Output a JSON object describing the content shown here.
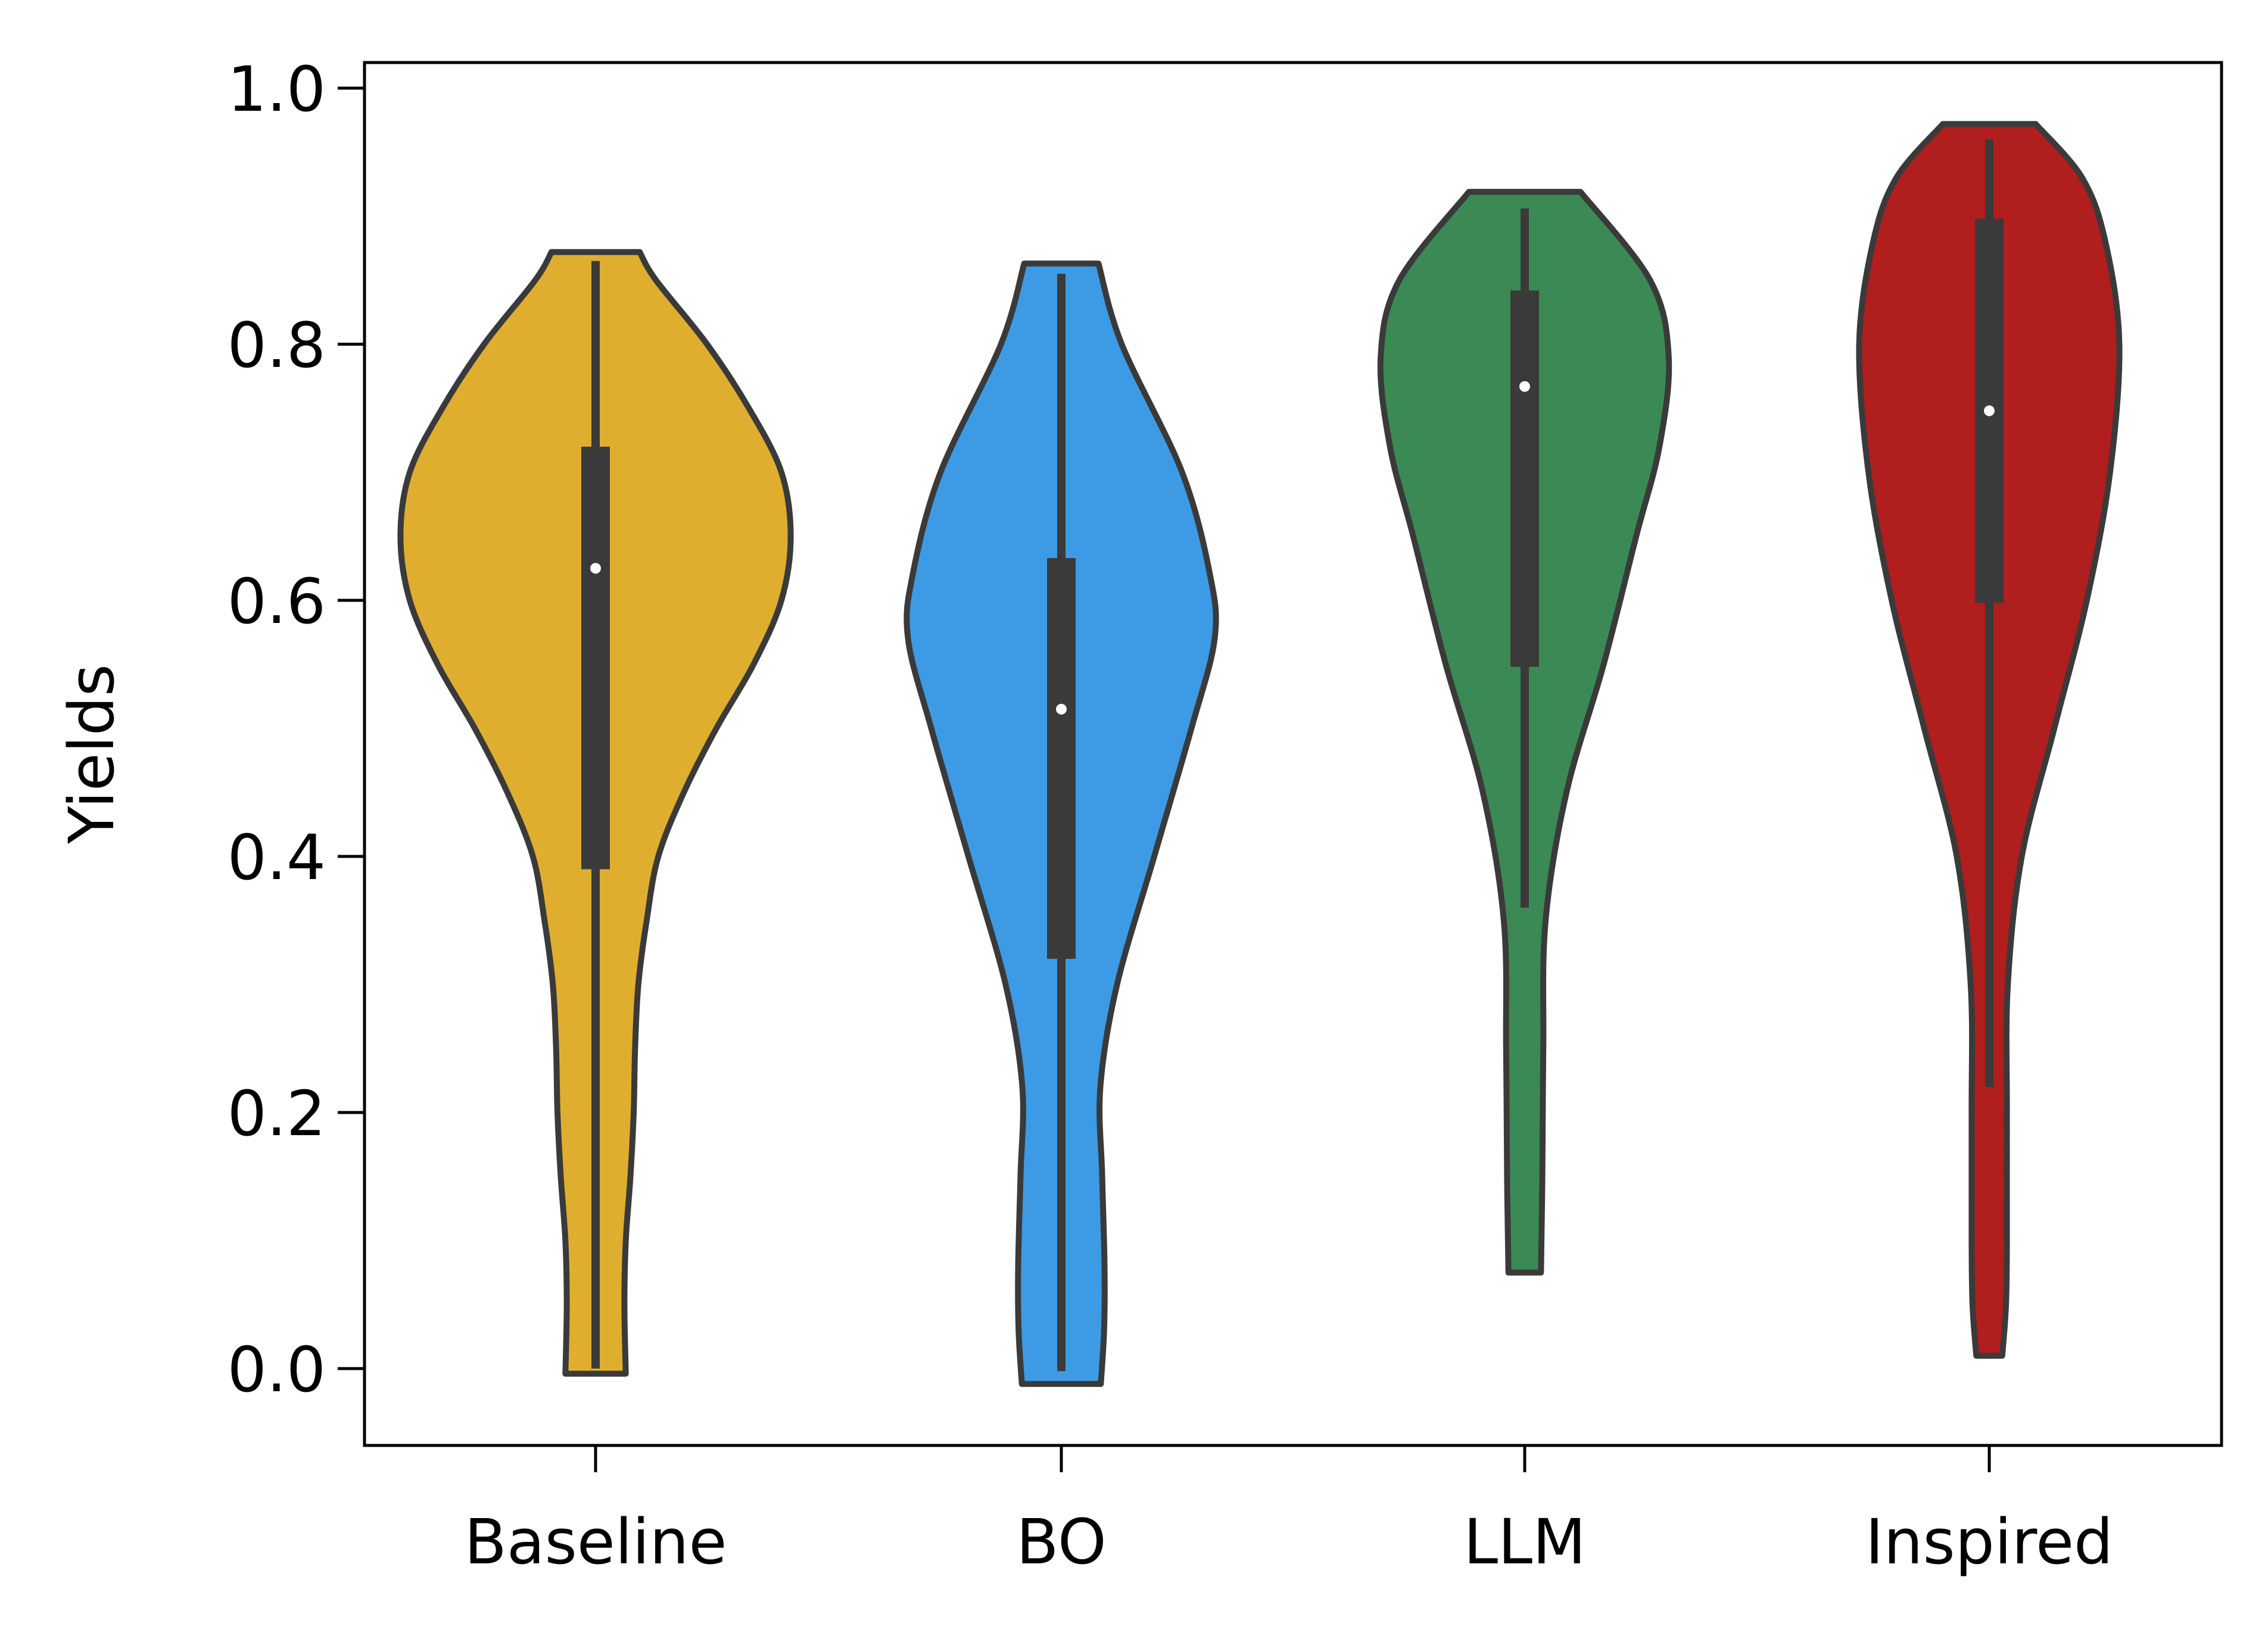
{
  "chart_data": {
    "type": "violin",
    "title": "",
    "xlabel": "",
    "ylabel": "Yields",
    "ylim": [
      -0.06,
      1.02
    ],
    "yticks": [
      0.0,
      0.2,
      0.4,
      0.6,
      0.8,
      1.0
    ],
    "ytick_labels": [
      "0.0",
      "0.2",
      "0.4",
      "0.6",
      "0.8",
      "1.0"
    ],
    "grid": false,
    "legend": "none",
    "categories": [
      "Baseline",
      "BO",
      "LLM",
      "Inspired"
    ],
    "series": [
      {
        "category": "Baseline",
        "color": "#e0ae2f",
        "min": 0.0,
        "q1": 0.39,
        "median": 0.625,
        "q3": 0.72,
        "max": 0.865,
        "cut_low": -0.004,
        "cut_high": 0.872,
        "density": [
          [
            -0.004,
            0.065
          ],
          [
            0.05,
            0.062
          ],
          [
            0.1,
            0.065
          ],
          [
            0.15,
            0.075
          ],
          [
            0.2,
            0.082
          ],
          [
            0.25,
            0.085
          ],
          [
            0.3,
            0.092
          ],
          [
            0.35,
            0.11
          ],
          [
            0.4,
            0.135
          ],
          [
            0.45,
            0.19
          ],
          [
            0.5,
            0.26
          ],
          [
            0.55,
            0.34
          ],
          [
            0.6,
            0.4
          ],
          [
            0.65,
            0.42
          ],
          [
            0.7,
            0.4
          ],
          [
            0.75,
            0.33
          ],
          [
            0.8,
            0.24
          ],
          [
            0.85,
            0.13
          ],
          [
            0.872,
            0.095
          ]
        ]
      },
      {
        "category": "BO",
        "color": "#3d9be5",
        "min": -0.002,
        "q1": 0.32,
        "median": 0.515,
        "q3": 0.633,
        "max": 0.855,
        "cut_low": -0.012,
        "cut_high": 0.863,
        "density": [
          [
            -0.012,
            0.085
          ],
          [
            0.03,
            0.092
          ],
          [
            0.08,
            0.093
          ],
          [
            0.15,
            0.088
          ],
          [
            0.22,
            0.084
          ],
          [
            0.3,
            0.12
          ],
          [
            0.4,
            0.2
          ],
          [
            0.5,
            0.28
          ],
          [
            0.57,
            0.33
          ],
          [
            0.62,
            0.32
          ],
          [
            0.7,
            0.26
          ],
          [
            0.8,
            0.13
          ],
          [
            0.863,
            0.08
          ]
        ]
      },
      {
        "category": "LLM",
        "color": "#3b8a55",
        "min": 0.36,
        "q1": 0.548,
        "median": 0.767,
        "q3": 0.842,
        "max": 0.906,
        "cut_low": 0.075,
        "cut_high": 0.919,
        "density": [
          [
            0.075,
            0.035
          ],
          [
            0.15,
            0.038
          ],
          [
            0.25,
            0.04
          ],
          [
            0.35,
            0.045
          ],
          [
            0.45,
            0.09
          ],
          [
            0.55,
            0.17
          ],
          [
            0.65,
            0.24
          ],
          [
            0.72,
            0.29
          ],
          [
            0.79,
            0.31
          ],
          [
            0.85,
            0.27
          ],
          [
            0.919,
            0.12
          ]
        ]
      },
      {
        "category": "Inspired",
        "color": "#b01e1e",
        "min": 0.22,
        "q1": 0.598,
        "median": 0.748,
        "q3": 0.898,
        "max": 0.96,
        "cut_low": 0.01,
        "cut_high": 0.972,
        "density": [
          [
            0.01,
            0.028
          ],
          [
            0.05,
            0.036
          ],
          [
            0.1,
            0.038
          ],
          [
            0.2,
            0.038
          ],
          [
            0.3,
            0.04
          ],
          [
            0.4,
            0.07
          ],
          [
            0.5,
            0.14
          ],
          [
            0.6,
            0.21
          ],
          [
            0.7,
            0.26
          ],
          [
            0.8,
            0.28
          ],
          [
            0.88,
            0.25
          ],
          [
            0.93,
            0.2
          ],
          [
            0.972,
            0.1
          ]
        ]
      }
    ]
  }
}
